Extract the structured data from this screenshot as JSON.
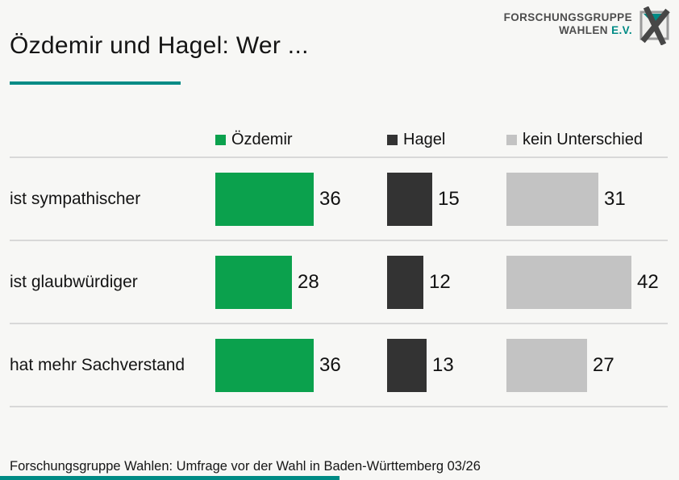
{
  "colors": {
    "accent_teal": "#008b85",
    "oezdemir_green": "#0ba14d",
    "hagel_dark": "#333333",
    "kein_unterschied_gray": "#c3c3c3",
    "background": "#f7f7f5",
    "separator": "#d8d8d8",
    "logo_gray": "#4d4d4d"
  },
  "header": {
    "title": "Özdemir und Hagel: Wer ...",
    "logo_line1": "FORSCHUNGSGRUPPE",
    "logo_line2": "WAHLEN",
    "logo_suffix": "E.V."
  },
  "chart_data": {
    "type": "bar",
    "orientation": "horizontal",
    "title": "Özdemir und Hagel: Wer ...",
    "categories": [
      "ist sympathischer",
      "ist glaubwürdiger",
      "hat mehr Sachverstand"
    ],
    "series": [
      {
        "name": "Özdemir",
        "color_key": "oezdemir_green",
        "values": [
          36,
          28,
          36
        ]
      },
      {
        "name": "Hagel",
        "color_key": "hagel_dark",
        "values": [
          15,
          12,
          13
        ]
      },
      {
        "name": "kein Unterschied",
        "color_key": "kein_unterschied_gray",
        "values": [
          31,
          42,
          27
        ]
      }
    ],
    "value_unit": "percent",
    "legend_position": "top",
    "grid": false
  },
  "footer": {
    "source": "Forschungsgruppe Wahlen: Umfrage vor der Wahl in Baden-Württemberg 03/26"
  }
}
